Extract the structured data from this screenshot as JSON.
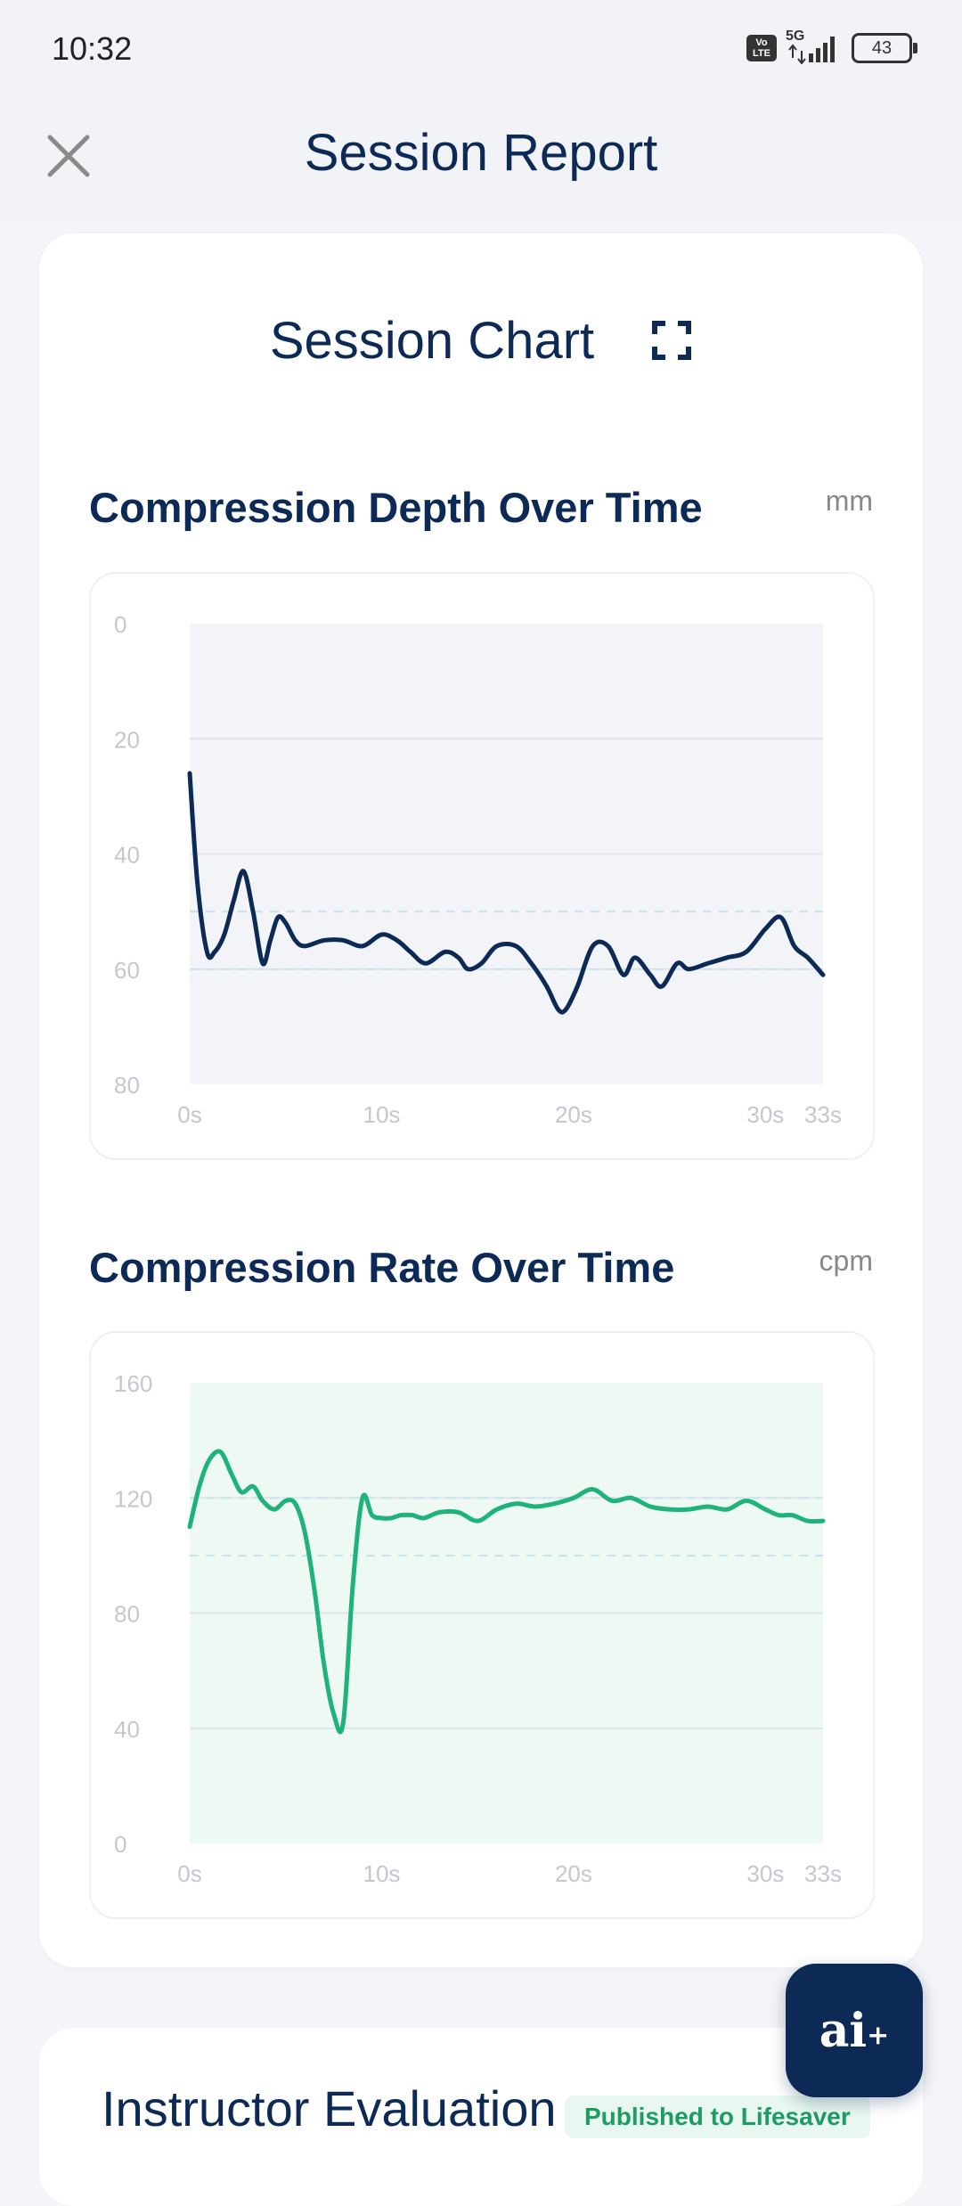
{
  "status_bar": {
    "time": "10:32",
    "volte_line1": "Vo",
    "volte_line2": "LTE",
    "network": "5G",
    "battery": "43"
  },
  "header": {
    "title": "Session Report",
    "close_icon": "close-icon"
  },
  "session_card": {
    "title": "Session Chart",
    "expand_icon": "expand-icon"
  },
  "depth_section": {
    "title": "Compression Depth Over Time",
    "unit": "mm"
  },
  "rate_section": {
    "title": "Compression Rate Over Time",
    "unit": "cpm"
  },
  "evaluation": {
    "title": "Instructor Evaluation",
    "badge": "Published to Lifesaver"
  },
  "ai_button": {
    "label": "ai",
    "plus": "+"
  },
  "colors": {
    "primary": "#0d2a57",
    "rate_line": "#1fb27a",
    "depth_bg": "#f3f4f8",
    "rate_bg": "#eef9f4"
  },
  "chart_data": [
    {
      "type": "line",
      "ylabel": "",
      "unit": "mm",
      "y_ticks": [
        "0",
        "20",
        "40",
        "60",
        "80"
      ],
      "x_ticks": [
        "0s",
        "10s",
        "20s",
        "30s",
        "33s"
      ],
      "ylim": [
        0,
        80
      ],
      "y_inverted": true,
      "xlim": [
        0,
        33
      ],
      "target_band": [
        50,
        60
      ],
      "x": [
        0,
        0.4,
        0.9,
        1.3,
        1.8,
        2.3,
        2.8,
        3.3,
        3.8,
        4.2,
        4.6,
        5.0,
        5.5,
        6.0,
        7.0,
        8.0,
        9.0,
        10.0,
        10.8,
        11.5,
        12.3,
        13.3,
        14.0,
        14.5,
        15.2,
        16.0,
        17.0,
        17.8,
        18.6,
        19.2,
        19.6,
        20.2,
        21.0,
        21.8,
        22.6,
        23.2,
        24.0,
        24.6,
        25.4,
        26.0,
        27.0,
        28.0,
        29.0,
        30.0,
        30.8,
        31.5,
        32.2,
        33.0
      ],
      "series": [
        {
          "values": [
            26,
            45,
            57,
            57,
            54,
            48,
            43,
            50,
            59,
            55,
            51,
            52,
            55,
            56,
            55,
            55,
            56,
            54,
            55,
            57,
            59,
            57,
            58,
            60,
            59,
            56,
            56,
            59,
            63,
            67,
            67,
            63,
            56,
            56,
            61,
            58,
            61,
            63,
            59,
            60,
            59,
            58,
            57,
            53,
            51,
            56,
            58,
            61
          ]
        }
      ]
    },
    {
      "type": "line",
      "ylabel": "",
      "unit": "cpm",
      "y_ticks": [
        "160",
        "120",
        "80",
        "40",
        "0"
      ],
      "x_ticks": [
        "0s",
        "10s",
        "20s",
        "30s",
        "33s"
      ],
      "ylim": [
        0,
        160
      ],
      "xlim": [
        0,
        33
      ],
      "target_band": [
        100,
        120
      ],
      "x": [
        0,
        0.5,
        1.0,
        1.6,
        2.2,
        2.7,
        3.3,
        3.8,
        4.4,
        5.0,
        5.5,
        6.0,
        6.5,
        7.0,
        7.5,
        8.0,
        8.5,
        9.0,
        9.5,
        10.0,
        10.5,
        11.0,
        11.6,
        12.2,
        13.0,
        14.0,
        15.0,
        16.0,
        17.0,
        18.0,
        19.0,
        20.0,
        21.0,
        22.0,
        23.0,
        24.0,
        25.0,
        26.0,
        27.0,
        28.0,
        29.0,
        30.0,
        30.7,
        31.4,
        32.2,
        33.0
      ],
      "series": [
        {
          "values": [
            110,
            124,
            133,
            136,
            128,
            122,
            124,
            119,
            116,
            119,
            118,
            108,
            88,
            62,
            45,
            42,
            90,
            120,
            114,
            113,
            113,
            114,
            114,
            113,
            115,
            115,
            112,
            116,
            118,
            117,
            118,
            120,
            123,
            119,
            120,
            117,
            116,
            116,
            117,
            116,
            119,
            116,
            114,
            114,
            112,
            112
          ]
        }
      ]
    }
  ]
}
